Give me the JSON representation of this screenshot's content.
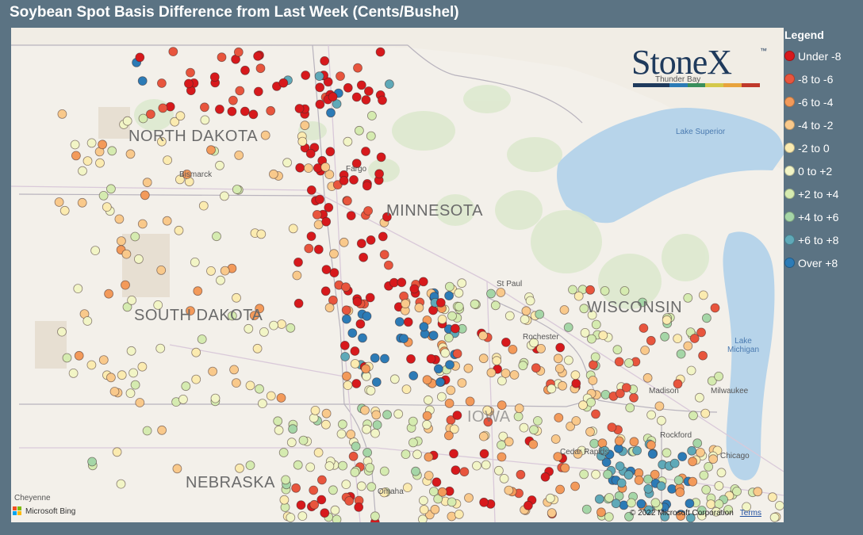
{
  "title": "Soybean Spot Basis Difference from Last Week (Cents/Bushel)",
  "legend": {
    "title": "Legend",
    "items": [
      {
        "label": "Under -8",
        "color": "#d7191c"
      },
      {
        "label": "-8 to -6",
        "color": "#e8553d"
      },
      {
        "label": "-6 to -4",
        "color": "#f39a5a"
      },
      {
        "label": "-4 to -2",
        "color": "#f9c98b"
      },
      {
        "label": "-2 to 0",
        "color": "#fbebb0"
      },
      {
        "label": "0 to +2",
        "color": "#f2f5c6"
      },
      {
        "label": "+2 to +4",
        "color": "#d5ebb0"
      },
      {
        "label": "+4 to +6",
        "color": "#a5d6a7"
      },
      {
        "label": "+6 to +8",
        "color": "#5fa9b8"
      },
      {
        "label": "Over +8",
        "color": "#2c7bb6"
      }
    ]
  },
  "logo": {
    "text": "StoneX",
    "tm": "™",
    "bar_colors": [
      "#1f3a5c",
      "#1f3a5c",
      "#2c7bb6",
      "#3a8f5c",
      "#d4c84a",
      "#e8a33d",
      "#c0392b"
    ]
  },
  "map": {
    "states": [
      "NORTH DAKOTA",
      "MINNESOTA",
      "SOUTH DAKOTA",
      "WISCONSIN",
      "NEBRASKA",
      "IOWA"
    ],
    "cities": [
      "Bismarck",
      "Fargo",
      "St Paul",
      "Rochester",
      "Madison",
      "Milwaukee",
      "Rockford",
      "Chicago",
      "Cedar Rapids",
      "Omaha",
      "Cheyenne",
      "Thunder Bay"
    ],
    "lakes": [
      "Lake Superior",
      "Lake Michigan"
    ]
  },
  "attribution": {
    "copyright": "© 2022 Microsoft Corporation",
    "terms": "Terms",
    "provider": "Microsoft Bing"
  }
}
